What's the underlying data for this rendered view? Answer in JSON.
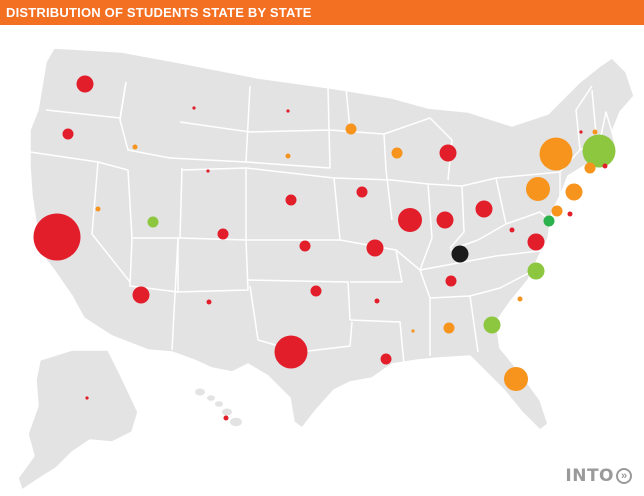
{
  "header": {
    "title": "DISTRIBUTION OF STUDENTS STATE BY STATE"
  },
  "brand": {
    "name": "INTO",
    "icon": "double-chevron-right-icon"
  },
  "colors": {
    "land": "#e3e3e4",
    "border": "#ffffff",
    "header": "#f36f21",
    "red": "#e31e2b",
    "orange": "#f7941d",
    "green": "#8dc63f",
    "bright_green": "#2bb24c",
    "black": "#1a1a1a"
  },
  "markers": [
    {
      "state": "WA",
      "size": "medium",
      "color": "red"
    },
    {
      "state": "OR",
      "size": "small",
      "color": "red"
    },
    {
      "state": "ID",
      "size": "tiny",
      "color": "orange"
    },
    {
      "state": "MT",
      "size": "dot",
      "color": "red"
    },
    {
      "state": "WY",
      "size": "dot",
      "color": "red"
    },
    {
      "state": "ND",
      "size": "dot",
      "color": "red"
    },
    {
      "state": "SD",
      "size": "tiny",
      "color": "orange"
    },
    {
      "state": "MN",
      "size": "small",
      "color": "orange"
    },
    {
      "state": "WI",
      "size": "small",
      "color": "orange"
    },
    {
      "state": "MI",
      "size": "medium",
      "color": "red"
    },
    {
      "state": "NV",
      "size": "tiny",
      "color": "orange"
    },
    {
      "state": "CA",
      "size": "xlarge",
      "color": "red"
    },
    {
      "state": "UT",
      "size": "small",
      "color": "green"
    },
    {
      "state": "CO",
      "size": "small",
      "color": "red"
    },
    {
      "state": "NE",
      "size": "small",
      "color": "red"
    },
    {
      "state": "IA",
      "size": "small",
      "color": "red"
    },
    {
      "state": "KS",
      "size": "small",
      "color": "red"
    },
    {
      "state": "MO",
      "size": "medium",
      "color": "red"
    },
    {
      "state": "IL",
      "size": "large",
      "color": "red"
    },
    {
      "state": "IN",
      "size": "medium",
      "color": "red"
    },
    {
      "state": "OH",
      "size": "medium",
      "color": "red"
    },
    {
      "state": "KY",
      "size": "medium",
      "color": "black"
    },
    {
      "state": "WV",
      "size": "tiny",
      "color": "red"
    },
    {
      "state": "VA",
      "size": "medium",
      "color": "red"
    },
    {
      "state": "AZ",
      "size": "medium",
      "color": "red"
    },
    {
      "state": "NM",
      "size": "tiny",
      "color": "red"
    },
    {
      "state": "OK",
      "size": "small",
      "color": "red"
    },
    {
      "state": "TX",
      "size": "xlarge-sub",
      "color": "red"
    },
    {
      "state": "AR",
      "size": "tiny",
      "color": "red"
    },
    {
      "state": "LA",
      "size": "small",
      "color": "red"
    },
    {
      "state": "MS",
      "size": "dot",
      "color": "orange"
    },
    {
      "state": "AL",
      "size": "small",
      "color": "orange"
    },
    {
      "state": "TN",
      "size": "small",
      "color": "red"
    },
    {
      "state": "GA",
      "size": "medium",
      "color": "green"
    },
    {
      "state": "SC",
      "size": "tiny",
      "color": "orange"
    },
    {
      "state": "NC",
      "size": "medium",
      "color": "green"
    },
    {
      "state": "FL",
      "size": "large",
      "color": "orange"
    },
    {
      "state": "PA",
      "size": "large",
      "color": "orange"
    },
    {
      "state": "NY",
      "size": "xlarge-sub",
      "color": "orange"
    },
    {
      "state": "VT",
      "size": "dot",
      "color": "red"
    },
    {
      "state": "NH",
      "size": "tiny",
      "color": "orange"
    },
    {
      "state": "MA",
      "size": "xlarge-sub",
      "color": "green"
    },
    {
      "state": "CT",
      "size": "small",
      "color": "orange"
    },
    {
      "state": "RI",
      "size": "tiny",
      "color": "red"
    },
    {
      "state": "NJ",
      "size": "medium",
      "color": "orange"
    },
    {
      "state": "DE",
      "size": "small",
      "color": "orange"
    },
    {
      "state": "MD",
      "size": "small",
      "color": "bright_green"
    },
    {
      "state": "DC",
      "size": "tiny",
      "color": "red"
    },
    {
      "state": "AK",
      "size": "dot",
      "color": "red"
    },
    {
      "state": "HI",
      "size": "tiny",
      "color": "red"
    }
  ]
}
